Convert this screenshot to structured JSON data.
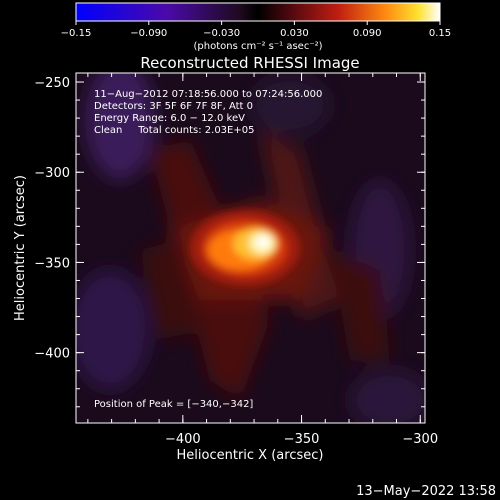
{
  "colorbar": {
    "tick_labels": [
      "−0.15",
      "−0.090",
      "−0.030",
      "0.030",
      "0.090",
      "0.15"
    ],
    "tick_values": [
      -0.15,
      -0.09,
      -0.03,
      0.03,
      0.09,
      0.15
    ],
    "range": [
      -0.15,
      0.15
    ],
    "unit_label": "(photons cm⁻² s⁻¹ asec⁻²)"
  },
  "chart_data": {
    "type": "heatmap",
    "title": "Reconstructed RHESSI Image",
    "xlabel": "Heliocentric X (arcsec)",
    "ylabel": "Heliocentric Y (arcsec)",
    "xlim": [
      -445,
      -298
    ],
    "ylim": [
      -439,
      -245
    ],
    "x_ticks": [
      -400,
      -350,
      -300
    ],
    "x_tick_labels": [
      "−400",
      "−350",
      "−300"
    ],
    "y_ticks": [
      -250,
      -300,
      -350,
      -400
    ],
    "y_tick_labels": [
      "−250",
      "−300",
      "−350",
      "−400"
    ],
    "colormap": "RHESSI std_gamma (blue-purple-red-yellow-white)",
    "peak": {
      "x": -340,
      "y": -342
    },
    "annotations": {
      "time": "11−Aug−2012 07:18:56.000 to 07:24:56.000",
      "detectors": "Detectors: 3F 5F 6F 7F 8F, Att 0",
      "energy": "Energy Range: 6.0 − 12.0 keV",
      "clean": "Clean     Total counts: 2.03E+05",
      "peak_label": "Position of Peak = [−340,−342]"
    }
  },
  "footer": {
    "timestamp": "13−May−2022 13:58"
  }
}
